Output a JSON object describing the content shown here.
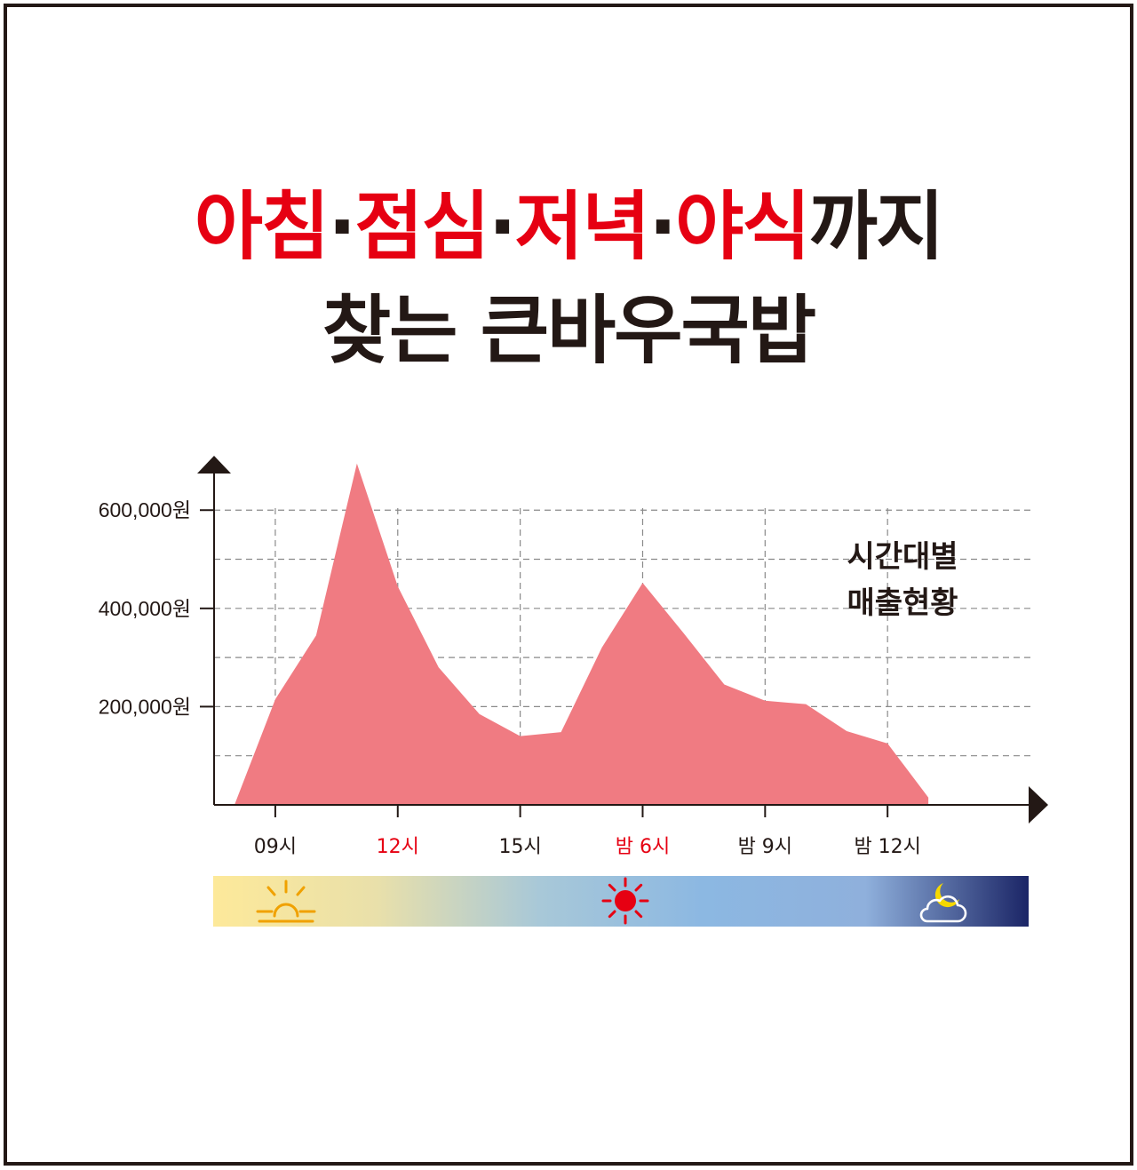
{
  "headline": {
    "line1_parts": [
      {
        "text": "아침",
        "accent": true
      },
      {
        "text": "·",
        "accent": false
      },
      {
        "text": "점심",
        "accent": true
      },
      {
        "text": "·",
        "accent": false
      },
      {
        "text": "저녁",
        "accent": true
      },
      {
        "text": "·",
        "accent": false
      },
      {
        "text": "야식",
        "accent": true
      },
      {
        "text": "까지",
        "accent": false
      }
    ],
    "line2": "찾는 큰바우국밥"
  },
  "colors": {
    "accent": "#e60012",
    "text": "#231815",
    "area_fill": "#f07b82",
    "grid": "#8a8a8a",
    "bar_gradient": [
      "#fde99a",
      "#e9e0aa",
      "#a8c8d8",
      "#8cb8e2",
      "#8fb0dc",
      "#1b2566"
    ],
    "sun_rise": "#f0a100",
    "sun_noon": "#e60012",
    "moon": "#f5d800"
  },
  "chart_data": {
    "type": "area",
    "title": "",
    "annotation": [
      "시간대별",
      "매출현황"
    ],
    "xlabel": "",
    "ylabel": "",
    "x": [
      8,
      9,
      10,
      11,
      12,
      13,
      14,
      15,
      16,
      17,
      18,
      19,
      20,
      21,
      22,
      23,
      24,
      25
    ],
    "series": [
      {
        "values": [
          0,
          215000,
          345000,
          695000,
          445000,
          280000,
          185000,
          140000,
          148000,
          320000,
          452000,
          350000,
          245000,
          212000,
          205000,
          150000,
          125000,
          15000
        ]
      }
    ],
    "xlim": [
      7.5,
      27.5
    ],
    "ylim": [
      0,
      680000
    ],
    "y_ticks": [
      {
        "value": 200000,
        "label": "200,000원"
      },
      {
        "value": 400000,
        "label": "400,000원"
      },
      {
        "value": 600000,
        "label": "600,000원"
      }
    ],
    "y_grid_minor": [
      100000,
      300000,
      500000
    ],
    "x_ticks": [
      {
        "value": 9,
        "label": "09시",
        "highlight": false
      },
      {
        "value": 12,
        "label": "12시",
        "highlight": true
      },
      {
        "value": 15,
        "label": "15시",
        "highlight": false
      },
      {
        "value": 18,
        "label": "밤 6시",
        "highlight": true
      },
      {
        "value": 21,
        "label": "밤 9시",
        "highlight": false
      },
      {
        "value": 24,
        "label": "밤 12시",
        "highlight": false
      }
    ],
    "grid": true,
    "time_of_day_bar": {
      "icons": [
        "sunrise-icon",
        "noon-sun-icon",
        "moon-cloud-icon"
      ]
    }
  }
}
